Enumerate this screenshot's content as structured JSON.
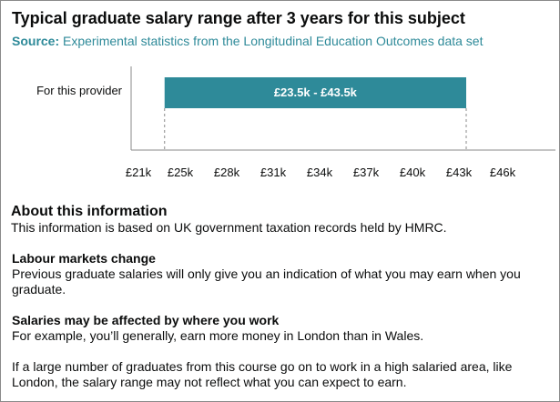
{
  "header": {
    "title": "Typical graduate salary range after 3 years for this subject",
    "source_label": "Source:",
    "source_text": " Experimental statistics from the Longitudinal Education Outcomes data set"
  },
  "colors": {
    "bar": "#2e8a99",
    "source": "#2e8a99",
    "axis": "#8a8a8a",
    "text": "#0b0c0c"
  },
  "chart_data": {
    "type": "bar",
    "orientation": "horizontal-range",
    "categories": [
      "For this provider"
    ],
    "ranges": [
      {
        "low": 23.5,
        "high": 43.5,
        "label": "£23.5k - £43.5k"
      }
    ],
    "xlim": [
      21,
      46
    ],
    "xticks": [
      21,
      25,
      28,
      31,
      34,
      37,
      40,
      43,
      46
    ],
    "xtick_labels": [
      "£21k",
      "£25k",
      "£28k",
      "£31k",
      "£34k",
      "£37k",
      "£40k",
      "£43k",
      "£46k"
    ],
    "title": "",
    "xlabel": "",
    "ylabel": "",
    "grid": false,
    "range_guides": "dashed"
  },
  "about": {
    "heading": "About this information",
    "intro": "This information is based on UK government taxation records held by HMRC.",
    "labour_heading": "Labour markets change",
    "labour_text": "Previous graduate salaries will only give you an indication of what you may earn when you graduate.",
    "location_heading": "Salaries may be affected by where you work",
    "location_text": "For example, you’ll generally, earn more money in London than in Wales.",
    "high_area_text": "If a large number of graduates from this course go on to work in a high salaried area, like London, the salary range may not reflect what you can expect to earn."
  }
}
